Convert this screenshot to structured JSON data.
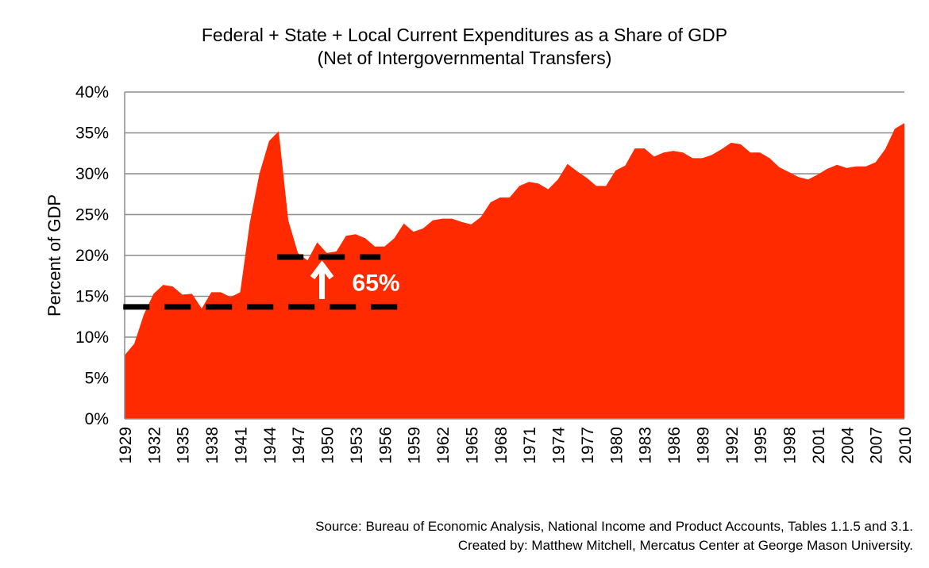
{
  "chart_data": {
    "type": "area",
    "title": "Federal + State + Local Current Expenditures as a Share of GDP",
    "subtitle": "(Net of Intergovernmental Transfers)",
    "xlabel": "",
    "ylabel": "Percent of GDP",
    "ylim": [
      0,
      40
    ],
    "yticks": [
      "0%",
      "5%",
      "10%",
      "15%",
      "20%",
      "25%",
      "30%",
      "35%",
      "40%"
    ],
    "xtick_labels": [
      "1929",
      "1932",
      "1935",
      "1938",
      "1941",
      "1944",
      "1947",
      "1950",
      "1953",
      "1956",
      "1959",
      "1962",
      "1965",
      "1968",
      "1971",
      "1974",
      "1977",
      "1980",
      "1983",
      "1986",
      "1989",
      "1992",
      "1995",
      "1998",
      "2001",
      "2004",
      "2007",
      "2010"
    ],
    "grid": "horizontal",
    "fill_color": "#ff2a00",
    "x": [
      1929,
      1930,
      1931,
      1932,
      1933,
      1934,
      1935,
      1936,
      1937,
      1938,
      1939,
      1940,
      1941,
      1942,
      1943,
      1944,
      1945,
      1946,
      1947,
      1948,
      1949,
      1950,
      1951,
      1952,
      1953,
      1954,
      1955,
      1956,
      1957,
      1958,
      1959,
      1960,
      1961,
      1962,
      1963,
      1964,
      1965,
      1966,
      1967,
      1968,
      1969,
      1970,
      1971,
      1972,
      1973,
      1974,
      1975,
      1976,
      1977,
      1978,
      1979,
      1980,
      1981,
      1982,
      1983,
      1984,
      1985,
      1986,
      1987,
      1988,
      1989,
      1990,
      1991,
      1992,
      1993,
      1994,
      1995,
      1996,
      1997,
      1998,
      1999,
      2000,
      2001,
      2002,
      2003,
      2004,
      2005,
      2006,
      2007,
      2008,
      2009,
      2010
    ],
    "values": [
      7.8,
      9.2,
      12.8,
      15.3,
      16.4,
      16.2,
      15.2,
      15.3,
      13.5,
      15.5,
      15.5,
      14.9,
      15.5,
      24,
      30,
      34,
      35.2,
      24.3,
      20.3,
      19.4,
      21.6,
      20.3,
      20.5,
      22.4,
      22.6,
      22.1,
      21.1,
      21.1,
      22.1,
      23.9,
      22.9,
      23.3,
      24.3,
      24.5,
      24.5,
      24.1,
      23.8,
      24.7,
      26.5,
      27.1,
      27.1,
      28.5,
      29,
      28.8,
      28.1,
      29.3,
      31.2,
      30.3,
      29.5,
      28.5,
      28.5,
      30.4,
      31,
      33.1,
      33.1,
      32.1,
      32.6,
      32.8,
      32.6,
      31.9,
      31.9,
      32.3,
      33,
      33.8,
      33.6,
      32.6,
      32.6,
      31.9,
      30.8,
      30.2,
      29.6,
      29.3,
      29.9,
      30.6,
      31.1,
      30.7,
      30.9,
      30.9,
      31.4,
      33,
      35.5,
      36.2
    ],
    "reference_lines": [
      {
        "y": 13.7,
        "from": 1931,
        "to": 1958
      },
      {
        "y": 19.8,
        "from": 1947,
        "to": 1955
      }
    ],
    "annotation": "65%",
    "source_lines": [
      "Source: Bureau of Economic Analysis, National Income and Product Accounts, Tables 1.1.5 and 3.1.",
      "Created by: Matthew Mitchell, Mercatus Center at George Mason University."
    ]
  }
}
